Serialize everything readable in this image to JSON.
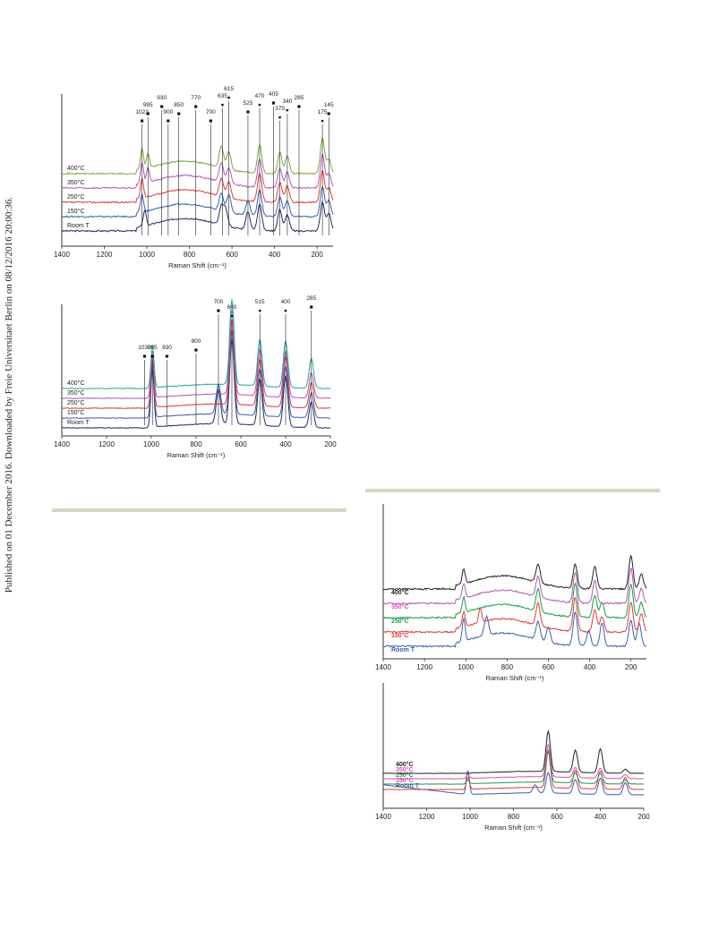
{
  "sidebar_text": "Published on 01 December 2016. Downloaded by Freie Universitaet Berlin on 08/12/2016 20:00:36.",
  "chart_data": [
    {
      "type": "line",
      "xlabel": "Raman Shift (cm⁻¹)",
      "xlim": [
        1400,
        125
      ],
      "x_ticks": [
        "1400",
        "1200",
        "1000",
        "800",
        "600",
        "400",
        "200"
      ],
      "series": [
        {
          "name": "Room T",
          "color": "#1f2f5c",
          "label_color": "#222",
          "peaks": [
            [
              1010,
              0.45
            ],
            [
              650,
              0.5
            ],
            [
              630,
              0.45
            ],
            [
              525,
              0.5
            ],
            [
              470,
              0.75
            ],
            [
              375,
              0.6
            ],
            [
              340,
              0.45
            ],
            [
              175,
              0.8
            ],
            [
              145,
              0.5
            ]
          ]
        },
        {
          "name": "150°C",
          "color": "#3b5fae",
          "label_color": "#222",
          "peaks": [
            [
              1023,
              0.5
            ],
            [
              650,
              0.5
            ],
            [
              615,
              0.5
            ],
            [
              525,
              0.4
            ],
            [
              470,
              0.75
            ],
            [
              375,
              0.55
            ],
            [
              340,
              0.45
            ],
            [
              175,
              0.85
            ],
            [
              145,
              0.45
            ]
          ]
        },
        {
          "name": "250°C",
          "color": "#e03b3b",
          "label_color": "#222",
          "peaks": [
            [
              1023,
              0.55
            ],
            [
              650,
              0.5
            ],
            [
              615,
              0.45
            ],
            [
              470,
              0.8
            ],
            [
              375,
              0.55
            ],
            [
              340,
              0.45
            ],
            [
              175,
              0.9
            ],
            [
              145,
              0.4
            ]
          ]
        },
        {
          "name": "350°C",
          "color": "#b05ab7",
          "label_color": "#222",
          "peaks": [
            [
              1023,
              0.6
            ],
            [
              995,
              0.4
            ],
            [
              650,
              0.55
            ],
            [
              615,
              0.45
            ],
            [
              470,
              0.8
            ],
            [
              375,
              0.55
            ],
            [
              340,
              0.45
            ],
            [
              175,
              0.95
            ],
            [
              145,
              0.4
            ]
          ]
        },
        {
          "name": "400°C",
          "color": "#7aa843",
          "label_color": "#222",
          "peaks": [
            [
              1023,
              0.6
            ],
            [
              995,
              0.4
            ],
            [
              650,
              0.6
            ],
            [
              615,
              0.5
            ],
            [
              470,
              0.8
            ],
            [
              375,
              0.6
            ],
            [
              340,
              0.5
            ],
            [
              175,
              1.0
            ],
            [
              145,
              0.4
            ]
          ]
        }
      ],
      "annotations": [
        {
          "label": "1023",
          "marker": "■",
          "x": 1023
        },
        {
          "label": "995",
          "marker": "■",
          "x": 995
        },
        {
          "label": "930",
          "marker": "■",
          "x": 930
        },
        {
          "label": "900",
          "marker": "■",
          "x": 900
        },
        {
          "label": "850",
          "marker": "■",
          "x": 850
        },
        {
          "label": "770",
          "marker": "■",
          "x": 770
        },
        {
          "label": "700",
          "marker": "■",
          "x": 700
        },
        {
          "label": "635",
          "marker": "●",
          "x": 645
        },
        {
          "label": "615",
          "marker": "●",
          "x": 615
        },
        {
          "label": "525",
          "marker": "■",
          "x": 525
        },
        {
          "label": "470",
          "marker": "●",
          "x": 470
        },
        {
          "label": "405",
          "marker": "■",
          "x": 405
        },
        {
          "label": "375",
          "marker": "●",
          "x": 375
        },
        {
          "label": "340",
          "marker": "●",
          "x": 340
        },
        {
          "label": "285",
          "marker": "■",
          "x": 285
        },
        {
          "label": "175",
          "marker": "●",
          "x": 175
        },
        {
          "label": "145",
          "marker": "■",
          "x": 145
        }
      ]
    },
    {
      "type": "line",
      "xlabel": "Raman Shift (cm⁻¹)",
      "xlim": [
        1400,
        200
      ],
      "x_ticks": [
        "1400",
        "1200",
        "1000",
        "800",
        "600",
        "400",
        "200"
      ],
      "series": [
        {
          "name": "Room T",
          "color": "#1f2f5c",
          "label_color": "#222",
          "peaks": [
            [
              995,
              0.7
            ],
            [
              700,
              0.4
            ],
            [
              640,
              1.0
            ],
            [
              515,
              0.55
            ],
            [
              400,
              0.6
            ],
            [
              285,
              0.3
            ]
          ]
        },
        {
          "name": "150°C",
          "color": "#3b5fae",
          "label_color": "#222",
          "peaks": [
            [
              995,
              0.65
            ],
            [
              700,
              0.35
            ],
            [
              640,
              1.0
            ],
            [
              515,
              0.55
            ],
            [
              400,
              0.6
            ],
            [
              285,
              0.3
            ]
          ]
        },
        {
          "name": "250°C",
          "color": "#e03b3b",
          "label_color": "#222",
          "peaks": [
            [
              995,
              0.6
            ],
            [
              640,
              1.0
            ],
            [
              515,
              0.55
            ],
            [
              400,
              0.6
            ],
            [
              285,
              0.3
            ]
          ]
        },
        {
          "name": "350°C",
          "color": "#b05ab7",
          "label_color": "#222",
          "peaks": [
            [
              995,
              0.55
            ],
            [
              640,
              1.0
            ],
            [
              515,
              0.55
            ],
            [
              400,
              0.55
            ],
            [
              285,
              0.3
            ]
          ]
        },
        {
          "name": "400°C",
          "color": "#2aa59c",
          "label_color": "#222",
          "peaks": [
            [
              995,
              0.5
            ],
            [
              640,
              1.0
            ],
            [
              515,
              0.55
            ],
            [
              400,
              0.55
            ],
            [
              285,
              0.35
            ]
          ]
        }
      ],
      "annotations": [
        {
          "label": "1030",
          "marker": "■",
          "x": 1030
        },
        {
          "label": "995",
          "marker": "■",
          "x": 995
        },
        {
          "label": "930",
          "marker": "■",
          "x": 930
        },
        {
          "label": "800",
          "marker": "■",
          "x": 800
        },
        {
          "label": "700",
          "marker": "■",
          "x": 700
        },
        {
          "label": "640",
          "marker": "●",
          "x": 640
        },
        {
          "label": "515",
          "marker": "●",
          "x": 515
        },
        {
          "label": "400",
          "marker": "●",
          "x": 400
        },
        {
          "label": "285",
          "marker": "■",
          "x": 285
        }
      ]
    },
    {
      "type": "line",
      "xlabel": "Raman Shift (cm⁻¹)",
      "xlim": [
        1400,
        125
      ],
      "x_ticks": [
        "1400",
        "1200",
        "1000",
        "800",
        "600",
        "400",
        "200"
      ],
      "series": [
        {
          "name": "Room T",
          "color": "#3b5fae",
          "label_color": "#3b5fae",
          "peaks": [
            [
              1010,
              0.6
            ],
            [
              900,
              0.5
            ],
            [
              650,
              0.5
            ],
            [
              600,
              0.4
            ],
            [
              470,
              0.9
            ],
            [
              405,
              0.4
            ],
            [
              340,
              0.6
            ],
            [
              200,
              0.7
            ],
            [
              160,
              0.6
            ]
          ]
        },
        {
          "name": "150°C",
          "color": "#e03b3b",
          "label_color": "#e03b3b",
          "peaks": [
            [
              1010,
              0.4
            ],
            [
              930,
              0.4
            ],
            [
              650,
              0.6
            ],
            [
              470,
              0.9
            ],
            [
              375,
              0.6
            ],
            [
              340,
              0.4
            ],
            [
              200,
              0.8
            ],
            [
              150,
              0.5
            ]
          ]
        },
        {
          "name": "250°C",
          "color": "#1e9a4a",
          "label_color": "#1e9a4a",
          "peaks": [
            [
              1010,
              0.4
            ],
            [
              650,
              0.6
            ],
            [
              470,
              0.9
            ],
            [
              375,
              0.6
            ],
            [
              340,
              0.4
            ],
            [
              200,
              0.9
            ],
            [
              150,
              0.4
            ]
          ]
        },
        {
          "name": "350°C",
          "color": "#b05ab7",
          "label_color": "#e04db5",
          "peaks": [
            [
              1010,
              0.4
            ],
            [
              650,
              0.55
            ],
            [
              470,
              0.8
            ],
            [
              375,
              0.6
            ],
            [
              200,
              0.95
            ],
            [
              150,
              0.4
            ]
          ]
        },
        {
          "name": "400°C",
          "color": "#222222",
          "label_color": "#222",
          "peaks": [
            [
              1010,
              0.4
            ],
            [
              650,
              0.5
            ],
            [
              470,
              0.65
            ],
            [
              375,
              0.6
            ],
            [
              200,
              0.9
            ],
            [
              150,
              0.4
            ]
          ]
        }
      ],
      "annotations": []
    },
    {
      "type": "line",
      "xlabel": "Raman Shift (cm⁻¹)",
      "xlim": [
        1400,
        200
      ],
      "x_ticks": [
        "1400",
        "1200",
        "1000",
        "800",
        "600",
        "400",
        "200"
      ],
      "series": [
        {
          "name": "Room T",
          "color": "#3b5fae",
          "label_color": "#3b5fae",
          "peaks": [
            [
              1010,
              0.6
            ],
            [
              700,
              0.2
            ],
            [
              640,
              0.5
            ],
            [
              515,
              0.35
            ],
            [
              400,
              0.4
            ],
            [
              285,
              0.3
            ]
          ]
        },
        {
          "name": "150°C",
          "color": "#e03b3b",
          "label_color": "#e04db5",
          "peaks": [
            [
              1010,
              0.3
            ],
            [
              640,
              0.9
            ],
            [
              515,
              0.45
            ],
            [
              400,
              0.45
            ],
            [
              285,
              0.3
            ]
          ]
        },
        {
          "name": "250°C",
          "color": "#1e9a4a",
          "label_color": "#1e9a4a",
          "peaks": [
            [
              1010,
              0.1
            ],
            [
              640,
              0.8
            ],
            [
              515,
              0.25
            ],
            [
              400,
              0.25
            ],
            [
              285,
              0.1
            ]
          ]
        },
        {
          "name": "350°C",
          "color": "#e04db5",
          "label_color": "#e04db5",
          "peaks": [
            [
              1010,
              0.1
            ],
            [
              640,
              0.8
            ],
            [
              515,
              0.25
            ],
            [
              400,
              0.25
            ],
            [
              285,
              0.1
            ]
          ]
        },
        {
          "name": "400°C",
          "color": "#222222",
          "label_color": "#222",
          "peaks": [
            [
              640,
              1.0
            ],
            [
              515,
              0.55
            ],
            [
              400,
              0.6
            ],
            [
              285,
              0.1
            ]
          ]
        }
      ],
      "annotations": []
    }
  ]
}
